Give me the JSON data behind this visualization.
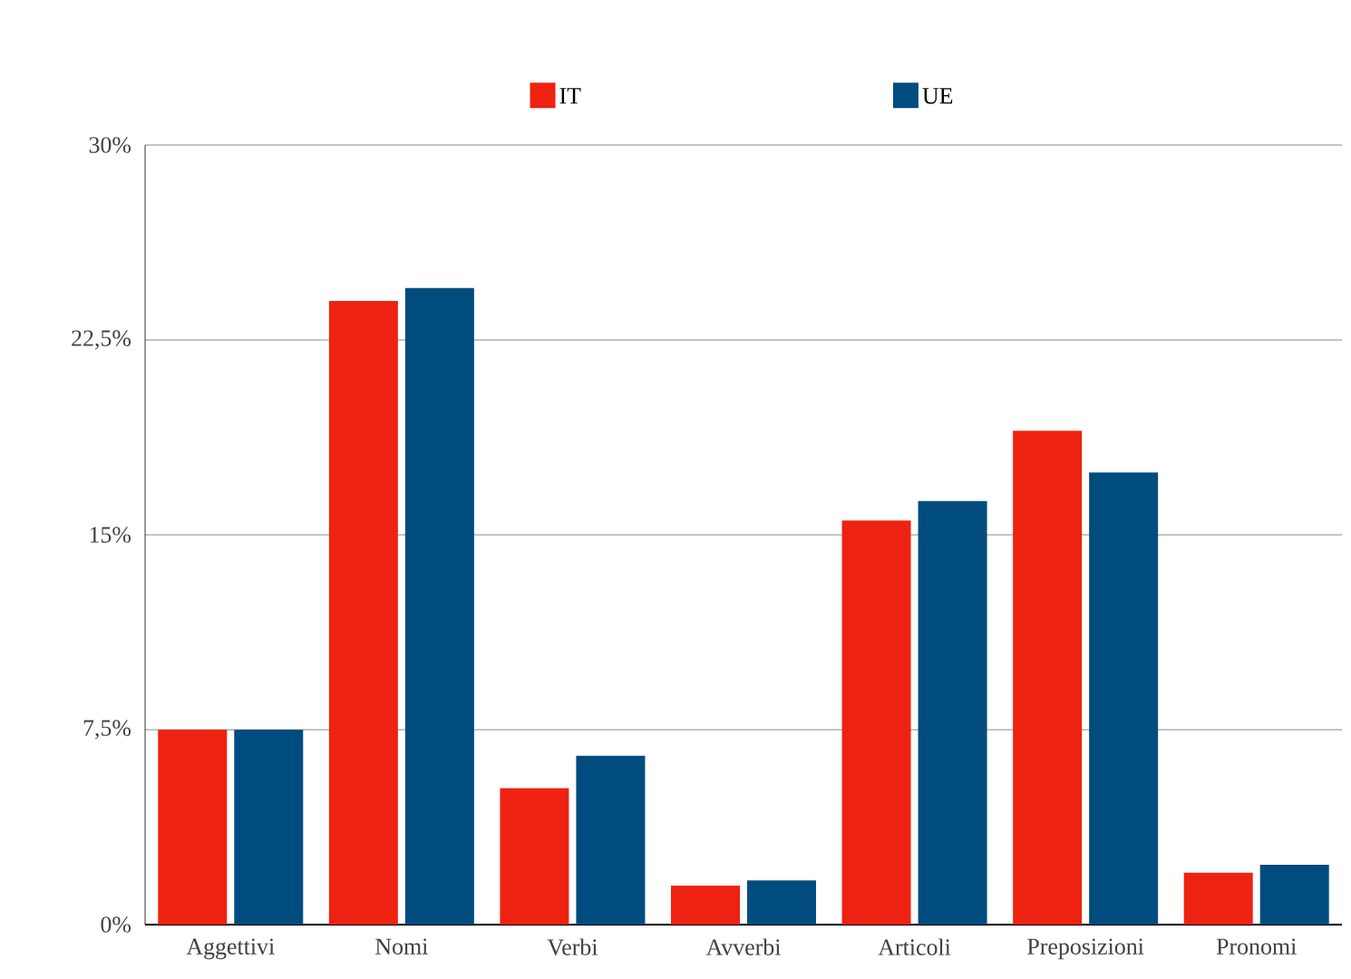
{
  "chart_data": {
    "type": "bar",
    "categories": [
      "Aggettivi",
      "Nomi",
      "Verbi",
      "Avverbi",
      "Articoli",
      "Preposizioni",
      "Pronomi"
    ],
    "series": [
      {
        "name": "IT",
        "color": "#ee2211",
        "values": [
          7.5,
          24.0,
          5.25,
          1.5,
          15.55,
          19.0,
          2.0
        ]
      },
      {
        "name": "UE",
        "color": "#004c7e",
        "values": [
          7.5,
          24.5,
          6.5,
          1.7,
          16.3,
          17.4,
          2.3
        ]
      }
    ],
    "ylim": [
      0,
      30
    ],
    "yticks": [
      {
        "value": 0,
        "label": "0%"
      },
      {
        "value": 7.5,
        "label": "7,5%"
      },
      {
        "value": 15,
        "label": "15%"
      },
      {
        "value": 22.5,
        "label": "22,5%"
      },
      {
        "value": 30,
        "label": "30%"
      }
    ],
    "grid": "y",
    "legend": "top"
  }
}
